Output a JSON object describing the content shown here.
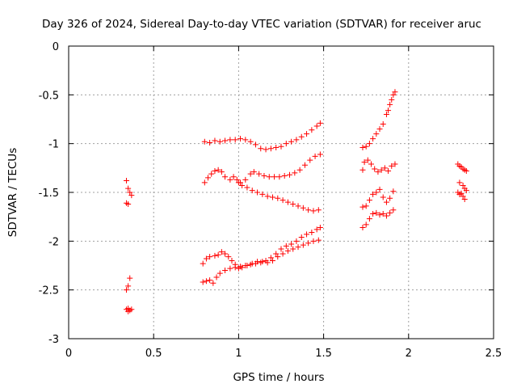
{
  "chart_data": {
    "type": "scatter",
    "title": "Day 326 of 2024, Sidereal Day-to-day VTEC variation (SDTVAR) for receiver aruc",
    "xlabel": "GPS time / hours",
    "ylabel": "SDTVAR / TECUs",
    "xlim": [
      0,
      2.5
    ],
    "ylim": [
      -3,
      0
    ],
    "xticks": [
      0,
      0.5,
      1,
      1.5,
      2,
      2.5
    ],
    "xtick_labels": [
      "0",
      "0.5",
      "1",
      "1.5",
      "2",
      "2.5"
    ],
    "yticks": [
      0,
      -0.5,
      -1,
      -1.5,
      -2,
      -2.5,
      -3
    ],
    "ytick_labels": [
      "0",
      "-0.5",
      "-1",
      "-1.5",
      "-2",
      "-2.5",
      "-3"
    ],
    "grid": true,
    "marker": "+",
    "marker_color": "#ff0000",
    "series": [
      {
        "name": "cluster-a",
        "points": [
          [
            0.34,
            -1.38
          ],
          [
            0.34,
            -1.61
          ],
          [
            0.35,
            -1.46
          ],
          [
            0.35,
            -1.62
          ],
          [
            0.36,
            -1.5
          ],
          [
            0.37,
            -1.53
          ]
        ]
      },
      {
        "name": "cluster-b",
        "points": [
          [
            0.34,
            -2.5
          ],
          [
            0.35,
            -2.46
          ],
          [
            0.36,
            -2.38
          ],
          [
            0.34,
            -2.7
          ],
          [
            0.35,
            -2.72
          ],
          [
            0.35,
            -2.69
          ],
          [
            0.36,
            -2.71
          ],
          [
            0.37,
            -2.7
          ]
        ]
      },
      {
        "name": "track-1",
        "points": [
          [
            0.8,
            -0.98
          ],
          [
            0.83,
            -0.99
          ],
          [
            0.86,
            -0.97
          ],
          [
            0.89,
            -0.98
          ],
          [
            0.92,
            -0.97
          ],
          [
            0.95,
            -0.96
          ],
          [
            0.98,
            -0.96
          ],
          [
            1.01,
            -0.95
          ],
          [
            1.04,
            -0.96
          ],
          [
            1.07,
            -0.98
          ],
          [
            1.1,
            -1.01
          ],
          [
            1.13,
            -1.05
          ],
          [
            1.16,
            -1.06
          ],
          [
            1.19,
            -1.05
          ],
          [
            1.22,
            -1.04
          ],
          [
            1.25,
            -1.03
          ],
          [
            1.28,
            -1.0
          ],
          [
            1.31,
            -0.98
          ],
          [
            1.34,
            -0.96
          ],
          [
            1.37,
            -0.93
          ],
          [
            1.4,
            -0.9
          ],
          [
            1.43,
            -0.86
          ],
          [
            1.46,
            -0.82
          ],
          [
            1.48,
            -0.79
          ]
        ]
      },
      {
        "name": "track-2",
        "points": [
          [
            0.8,
            -1.4
          ],
          [
            0.82,
            -1.35
          ],
          [
            0.84,
            -1.31
          ],
          [
            0.86,
            -1.28
          ],
          [
            0.88,
            -1.27
          ],
          [
            0.9,
            -1.29
          ],
          [
            0.92,
            -1.34
          ],
          [
            0.95,
            -1.37
          ],
          [
            0.97,
            -1.34
          ],
          [
            0.99,
            -1.37
          ],
          [
            1.01,
            -1.4
          ],
          [
            1.04,
            -1.37
          ],
          [
            1.07,
            -1.31
          ],
          [
            1.09,
            -1.29
          ],
          [
            1.12,
            -1.31
          ],
          [
            1.15,
            -1.33
          ],
          [
            1.18,
            -1.34
          ],
          [
            1.21,
            -1.34
          ],
          [
            1.24,
            -1.34
          ],
          [
            1.27,
            -1.33
          ],
          [
            1.3,
            -1.32
          ],
          [
            1.33,
            -1.3
          ],
          [
            1.36,
            -1.27
          ],
          [
            1.39,
            -1.22
          ],
          [
            1.42,
            -1.17
          ],
          [
            1.45,
            -1.13
          ],
          [
            1.48,
            -1.11
          ]
        ]
      },
      {
        "name": "track-3",
        "points": [
          [
            1.0,
            -1.4
          ],
          [
            1.02,
            -1.43
          ],
          [
            1.05,
            -1.45
          ],
          [
            1.08,
            -1.48
          ],
          [
            1.11,
            -1.5
          ],
          [
            1.14,
            -1.52
          ],
          [
            1.17,
            -1.54
          ],
          [
            1.2,
            -1.55
          ],
          [
            1.23,
            -1.56
          ],
          [
            1.26,
            -1.58
          ],
          [
            1.29,
            -1.6
          ],
          [
            1.32,
            -1.62
          ],
          [
            1.35,
            -1.64
          ],
          [
            1.38,
            -1.66
          ],
          [
            1.41,
            -1.68
          ],
          [
            1.44,
            -1.69
          ],
          [
            1.47,
            -1.68
          ]
        ]
      },
      {
        "name": "track-4",
        "points": [
          [
            0.79,
            -2.23
          ],
          [
            0.81,
            -2.18
          ],
          [
            0.83,
            -2.16
          ],
          [
            0.86,
            -2.15
          ],
          [
            0.88,
            -2.14
          ],
          [
            0.9,
            -2.11
          ],
          [
            0.92,
            -2.13
          ],
          [
            0.94,
            -2.16
          ],
          [
            0.96,
            -2.2
          ],
          [
            0.98,
            -2.24
          ],
          [
            1.0,
            -2.28
          ],
          [
            1.02,
            -2.27
          ],
          [
            1.05,
            -2.25
          ],
          [
            1.08,
            -2.23
          ],
          [
            1.11,
            -2.21
          ],
          [
            1.14,
            -2.21
          ],
          [
            1.17,
            -2.22
          ],
          [
            1.2,
            -2.2
          ],
          [
            1.23,
            -2.16
          ],
          [
            1.26,
            -2.13
          ],
          [
            1.29,
            -2.1
          ],
          [
            1.32,
            -2.08
          ],
          [
            1.35,
            -2.06
          ],
          [
            1.38,
            -2.04
          ],
          [
            1.41,
            -2.02
          ],
          [
            1.44,
            -2.0
          ],
          [
            1.47,
            -1.99
          ]
        ]
      },
      {
        "name": "track-5",
        "points": [
          [
            0.79,
            -2.42
          ],
          [
            0.81,
            -2.41
          ],
          [
            0.83,
            -2.4
          ],
          [
            0.85,
            -2.43
          ],
          [
            0.87,
            -2.37
          ],
          [
            0.89,
            -2.33
          ],
          [
            0.92,
            -2.3
          ],
          [
            0.95,
            -2.28
          ],
          [
            0.98,
            -2.27
          ],
          [
            1.01,
            -2.26
          ],
          [
            1.04,
            -2.25
          ],
          [
            1.07,
            -2.24
          ],
          [
            1.1,
            -2.23
          ],
          [
            1.13,
            -2.22
          ],
          [
            1.16,
            -2.2
          ],
          [
            1.19,
            -2.17
          ],
          [
            1.22,
            -2.13
          ],
          [
            1.25,
            -2.08
          ],
          [
            1.28,
            -2.05
          ],
          [
            1.31,
            -2.03
          ],
          [
            1.34,
            -2.0
          ],
          [
            1.37,
            -1.96
          ],
          [
            1.4,
            -1.93
          ],
          [
            1.43,
            -1.91
          ],
          [
            1.46,
            -1.88
          ],
          [
            1.48,
            -1.86
          ]
        ]
      },
      {
        "name": "track-6",
        "points": [
          [
            1.73,
            -1.04
          ],
          [
            1.75,
            -1.03
          ],
          [
            1.77,
            -1.0
          ],
          [
            1.79,
            -0.95
          ],
          [
            1.81,
            -0.9
          ],
          [
            1.83,
            -0.85
          ],
          [
            1.85,
            -0.8
          ],
          [
            1.87,
            -0.7
          ],
          [
            1.88,
            -0.66
          ],
          [
            1.89,
            -0.6
          ],
          [
            1.9,
            -0.55
          ],
          [
            1.91,
            -0.5
          ],
          [
            1.92,
            -0.47
          ]
        ]
      },
      {
        "name": "track-7",
        "points": [
          [
            1.73,
            -1.27
          ],
          [
            1.74,
            -1.19
          ],
          [
            1.76,
            -1.17
          ],
          [
            1.78,
            -1.21
          ],
          [
            1.8,
            -1.26
          ],
          [
            1.82,
            -1.29
          ],
          [
            1.84,
            -1.27
          ],
          [
            1.86,
            -1.25
          ],
          [
            1.88,
            -1.28
          ],
          [
            1.9,
            -1.23
          ],
          [
            1.92,
            -1.21
          ]
        ]
      },
      {
        "name": "track-8",
        "points": [
          [
            1.73,
            -1.65
          ],
          [
            1.75,
            -1.64
          ],
          [
            1.77,
            -1.58
          ],
          [
            1.79,
            -1.52
          ],
          [
            1.81,
            -1.5
          ],
          [
            1.83,
            -1.47
          ],
          [
            1.85,
            -1.55
          ],
          [
            1.87,
            -1.6
          ],
          [
            1.89,
            -1.56
          ],
          [
            1.91,
            -1.49
          ]
        ]
      },
      {
        "name": "track-9",
        "points": [
          [
            1.73,
            -1.86
          ],
          [
            1.75,
            -1.83
          ],
          [
            1.77,
            -1.77
          ],
          [
            1.79,
            -1.72
          ],
          [
            1.81,
            -1.71
          ],
          [
            1.83,
            -1.73
          ],
          [
            1.85,
            -1.72
          ],
          [
            1.87,
            -1.74
          ],
          [
            1.89,
            -1.71
          ],
          [
            1.91,
            -1.68
          ]
        ]
      },
      {
        "name": "track-10",
        "points": [
          [
            2.29,
            -1.21
          ],
          [
            2.3,
            -1.23
          ],
          [
            2.31,
            -1.24
          ],
          [
            2.32,
            -1.26
          ],
          [
            2.33,
            -1.27
          ],
          [
            2.34,
            -1.28
          ],
          [
            2.3,
            -1.4
          ],
          [
            2.32,
            -1.43
          ],
          [
            2.33,
            -1.46
          ],
          [
            2.34,
            -1.48
          ],
          [
            2.29,
            -1.5
          ],
          [
            2.3,
            -1.52
          ],
          [
            2.31,
            -1.51
          ],
          [
            2.32,
            -1.54
          ],
          [
            2.33,
            -1.57
          ]
        ]
      }
    ]
  }
}
